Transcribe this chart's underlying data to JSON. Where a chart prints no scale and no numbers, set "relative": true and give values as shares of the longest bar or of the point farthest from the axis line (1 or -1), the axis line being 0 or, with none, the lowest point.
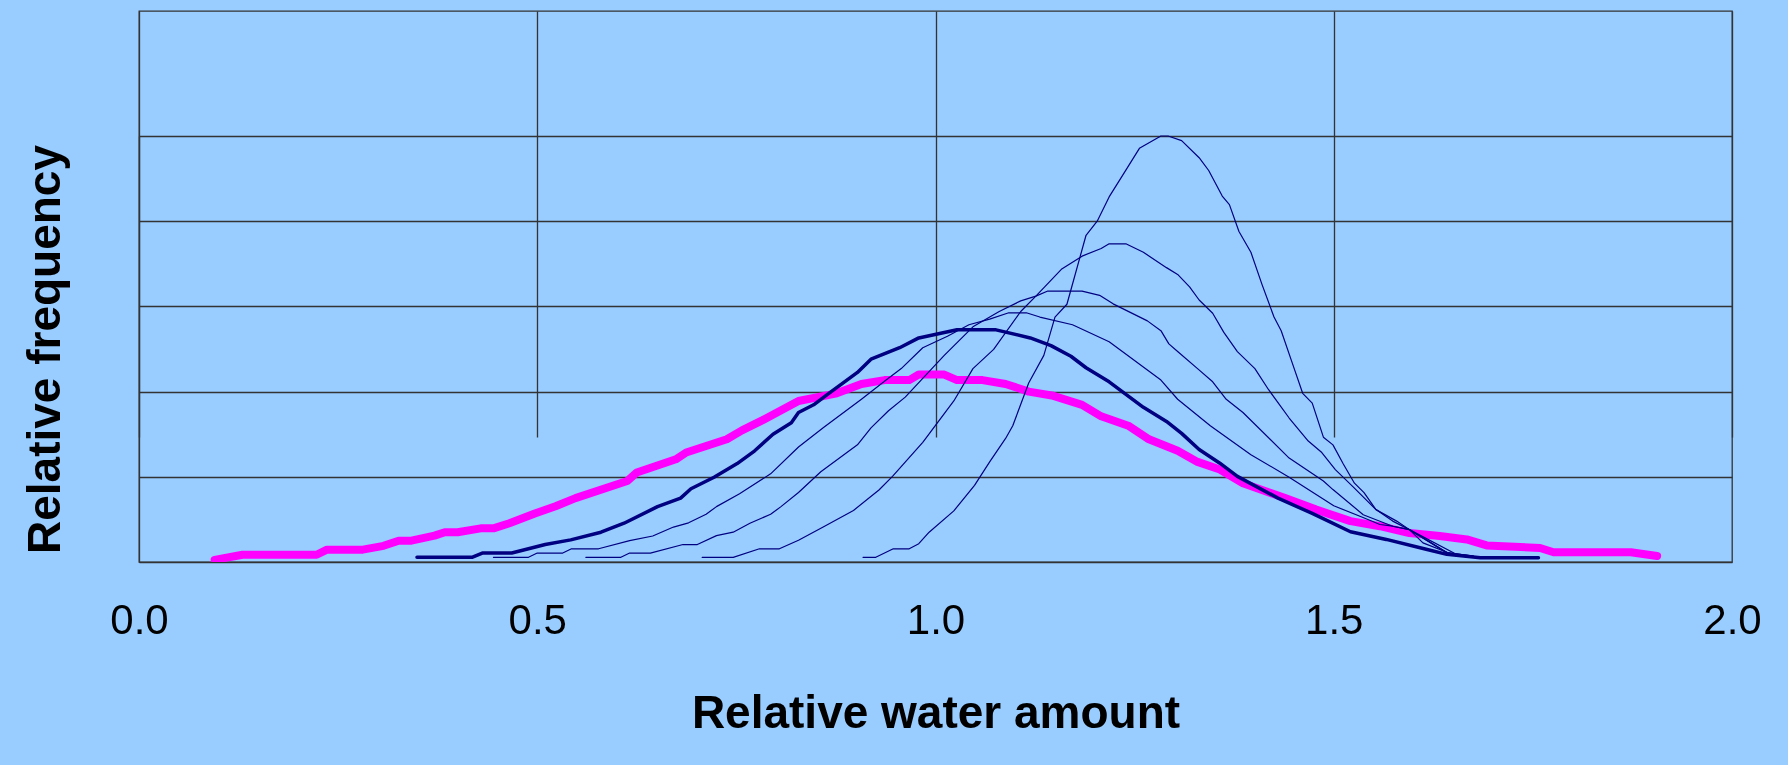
{
  "chart_data": {
    "type": "line",
    "relative": true,
    "xlabel": "Relative water amount",
    "ylabel": "Relative frequency",
    "xlim": [
      0,
      2
    ],
    "xticks": [
      {
        "value": 0,
        "label": "0.0"
      },
      0.5,
      {
        "value": 1,
        "label": "1.0"
      },
      1.5,
      {
        "value": 2,
        "label": "2.0"
      }
    ],
    "grid": true,
    "series": [
      {
        "color": "#ff00ff",
        "x": [
          0.095,
          0.13,
          0.223,
          0.236,
          0.281,
          0.307,
          0.326,
          0.342,
          0.371,
          0.384,
          0.4,
          0.429,
          0.445,
          0.465,
          0.497,
          0.523,
          0.548,
          0.613,
          0.625,
          0.674,
          0.687,
          0.738,
          0.757,
          0.783,
          0.828,
          0.876,
          0.907,
          0.936,
          0.967,
          0.979,
          1.011,
          1.027,
          1.059,
          1.088,
          1.117,
          1.146,
          1.184,
          1.208,
          1.242,
          1.268,
          1.304,
          1.329,
          1.357,
          1.386,
          1.439,
          1.478,
          1.521,
          1.558,
          1.595,
          1.633,
          1.667,
          1.692,
          1.759,
          1.776,
          1.873,
          1.906
        ],
        "values": [
          0.005,
          0.017,
          0.017,
          0.029,
          0.029,
          0.038,
          0.05,
          0.05,
          0.062,
          0.07,
          0.07,
          0.079,
          0.079,
          0.091,
          0.114,
          0.131,
          0.15,
          0.19,
          0.21,
          0.241,
          0.257,
          0.288,
          0.309,
          0.333,
          0.378,
          0.396,
          0.418,
          0.427,
          0.427,
          0.44,
          0.44,
          0.427,
          0.427,
          0.418,
          0.4,
          0.391,
          0.369,
          0.342,
          0.32,
          0.288,
          0.261,
          0.235,
          0.217,
          0.185,
          0.15,
          0.123,
          0.096,
          0.084,
          0.068,
          0.061,
          0.053,
          0.039,
          0.033,
          0.023,
          0.023,
          0.014
        ]
      },
      {
        "color": "#000080",
        "x": [
          0.349,
          0.418,
          0.431,
          0.468,
          0.51,
          0.542,
          0.58,
          0.609,
          0.651,
          0.68,
          0.693,
          0.722,
          0.751,
          0.773,
          0.796,
          0.819,
          0.828,
          0.847,
          0.864,
          0.902,
          0.919,
          0.955,
          0.979,
          1.027,
          1.076,
          1.119,
          1.145,
          1.17,
          1.189,
          1.218,
          1.261,
          1.29,
          1.309,
          1.331,
          1.357,
          1.379,
          1.43,
          1.473,
          1.521,
          1.566,
          1.616,
          1.642,
          1.684,
          1.757
        ],
        "values": [
          0.011,
          0.011,
          0.021,
          0.021,
          0.041,
          0.052,
          0.07,
          0.091,
          0.13,
          0.15,
          0.172,
          0.199,
          0.231,
          0.261,
          0.3,
          0.327,
          0.351,
          0.369,
          0.393,
          0.445,
          0.476,
          0.503,
          0.526,
          0.545,
          0.545,
          0.526,
          0.508,
          0.483,
          0.456,
          0.423,
          0.363,
          0.33,
          0.302,
          0.264,
          0.232,
          0.201,
          0.15,
          0.114,
          0.071,
          0.053,
          0.03,
          0.018,
          0.01,
          0.01
        ]
      },
      {
        "color": "#000080",
        "x": [
          0.445,
          0.489,
          0.5,
          0.532,
          0.543,
          0.577,
          0.616,
          0.645,
          0.671,
          0.69,
          0.712,
          0.725,
          0.754,
          0.793,
          0.828,
          0.859,
          0.907,
          0.938,
          0.957,
          0.984,
          1.015,
          1.042,
          1.068,
          1.092,
          1.114,
          1.131,
          1.172,
          1.218,
          1.283,
          1.304,
          1.345,
          1.396,
          1.444,
          1.5,
          1.536,
          1.558,
          1.574,
          1.595,
          1.612,
          1.654,
          1.675
        ],
        "values": [
          0.011,
          0.011,
          0.021,
          0.021,
          0.031,
          0.031,
          0.05,
          0.061,
          0.082,
          0.092,
          0.112,
          0.13,
          0.16,
          0.207,
          0.27,
          0.315,
          0.382,
          0.427,
          0.454,
          0.503,
          0.53,
          0.557,
          0.57,
          0.585,
          0.585,
          0.575,
          0.557,
          0.517,
          0.427,
          0.382,
          0.32,
          0.252,
          0.199,
          0.132,
          0.105,
          0.088,
          0.084,
          0.076,
          0.045,
          0.014,
          0.014
        ]
      },
      {
        "color": "#000080",
        "x": [
          0.561,
          0.605,
          0.616,
          0.642,
          0.683,
          0.701,
          0.725,
          0.746,
          0.767,
          0.793,
          0.806,
          0.828,
          0.856,
          0.902,
          0.919,
          0.941,
          0.962,
          1.011,
          1.047,
          1.08,
          1.107,
          1.126,
          1.141,
          1.184,
          1.206,
          1.223,
          1.266,
          1.283,
          1.293,
          1.304,
          1.329,
          1.348,
          1.365,
          1.386,
          1.444,
          1.487,
          1.499,
          1.537,
          1.574,
          1.595,
          1.642,
          1.675
        ],
        "values": [
          0.011,
          0.011,
          0.021,
          0.021,
          0.041,
          0.041,
          0.062,
          0.07,
          0.091,
          0.112,
          0.13,
          0.163,
          0.212,
          0.275,
          0.315,
          0.355,
          0.387,
          0.485,
          0.552,
          0.588,
          0.613,
          0.624,
          0.636,
          0.636,
          0.626,
          0.606,
          0.566,
          0.543,
          0.512,
          0.494,
          0.454,
          0.423,
          0.382,
          0.351,
          0.244,
          0.19,
          0.17,
          0.111,
          0.084,
          0.076,
          0.022,
          0.014
        ]
      },
      {
        "color": "#000080",
        "x": [
          0.707,
          0.746,
          0.779,
          0.804,
          0.828,
          0.859,
          0.897,
          0.929,
          0.946,
          0.984,
          1.023,
          1.047,
          1.073,
          1.107,
          1.126,
          1.158,
          1.184,
          1.208,
          1.218,
          1.239,
          1.261,
          1.29,
          1.304,
          1.319,
          1.331,
          1.348,
          1.362,
          1.379,
          1.401,
          1.418,
          1.444,
          1.468,
          1.485,
          1.502,
          1.524,
          1.553,
          1.579,
          1.595,
          1.642,
          1.675
        ],
        "values": [
          0.011,
          0.011,
          0.031,
          0.031,
          0.051,
          0.082,
          0.121,
          0.169,
          0.201,
          0.281,
          0.378,
          0.454,
          0.499,
          0.588,
          0.624,
          0.687,
          0.718,
          0.736,
          0.747,
          0.747,
          0.727,
          0.691,
          0.675,
          0.646,
          0.615,
          0.584,
          0.539,
          0.494,
          0.454,
          0.405,
          0.338,
          0.284,
          0.257,
          0.217,
          0.177,
          0.123,
          0.096,
          0.076,
          0.022,
          0.014
        ]
      },
      {
        "color": "#000080",
        "x": [
          0.909,
          0.925,
          0.947,
          0.967,
          0.979,
          0.992,
          1.023,
          1.049,
          1.068,
          1.088,
          1.097,
          1.117,
          1.136,
          1.15,
          1.165,
          1.189,
          1.203,
          1.218,
          1.239,
          1.256,
          1.283,
          1.292,
          1.309,
          1.331,
          1.343,
          1.36,
          1.369,
          1.381,
          1.396,
          1.41,
          1.425,
          1.434,
          1.447,
          1.461,
          1.473,
          1.487,
          1.499,
          1.512,
          1.526,
          1.538,
          1.553,
          1.574,
          1.595,
          1.658,
          1.684
        ],
        "values": [
          0.011,
          0.011,
          0.031,
          0.031,
          0.043,
          0.07,
          0.12,
          0.18,
          0.235,
          0.29,
          0.32,
          0.42,
          0.485,
          0.575,
          0.605,
          0.767,
          0.8,
          0.857,
          0.92,
          0.971,
          1,
          1,
          0.989,
          0.949,
          0.919,
          0.859,
          0.839,
          0.776,
          0.727,
          0.651,
          0.575,
          0.543,
          0.472,
          0.396,
          0.373,
          0.293,
          0.275,
          0.23,
          0.185,
          0.163,
          0.123,
          0.096,
          0.076,
          0.014,
          0.01
        ]
      }
    ]
  }
}
